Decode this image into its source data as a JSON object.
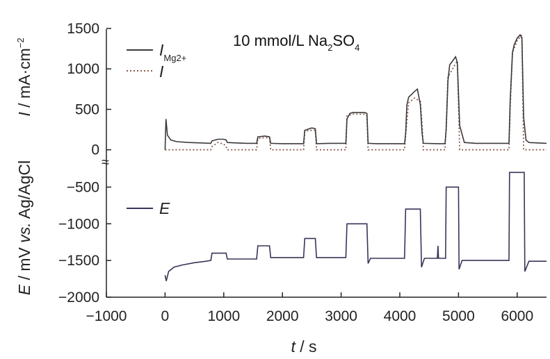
{
  "chart_data": {
    "type": "line",
    "title": "",
    "annotation": {
      "text": "10 mmol/L Na",
      "sub1": "2",
      "mid": "SO",
      "sub2": "4"
    },
    "xlabel": {
      "var": "t",
      "rest": " / s"
    },
    "xlim": [
      -1000,
      6500
    ],
    "x_ticks": [
      "−1000",
      "0",
      "1000",
      "2000",
      "3000",
      "4000",
      "5000",
      "6000"
    ],
    "x_tick_values": [
      -1000,
      0,
      1000,
      2000,
      3000,
      4000,
      5000,
      6000
    ],
    "break_marker": "≈",
    "colors": {
      "imeas": "#3a3a3a",
      "icalc": "#8a5a4a",
      "e": "#3a3357",
      "axis": "#222222"
    },
    "upper": {
      "ylabel": {
        "var": "I",
        "rest": " / mA·cm",
        "sup": "−2"
      },
      "ylim": [
        -80,
        1500
      ],
      "y_ticks": [
        "0",
        "500",
        "1000",
        "1500"
      ],
      "y_tick_values": [
        0,
        500,
        1000,
        1500
      ],
      "series": [
        {
          "name": "I",
          "name_sub": "Mg2+",
          "style": "solid",
          "x": [
            0,
            15,
            40,
            100,
            200,
            400,
            600,
            780,
            800,
            900,
            1000,
            1040,
            1060,
            1200,
            1400,
            1560,
            1580,
            1700,
            1780,
            1800,
            2000,
            2300,
            2360,
            2380,
            2500,
            2560,
            2580,
            2800,
            3080,
            3100,
            3150,
            3200,
            3400,
            3440,
            3460,
            3600,
            4000,
            4080,
            4100,
            4120,
            4150,
            4250,
            4300,
            4350,
            4380,
            4400,
            4650,
            4770,
            4790,
            4820,
            4850,
            4900,
            4950,
            4980,
            5020,
            5100,
            5300,
            5700,
            5860,
            5880,
            5920,
            5950,
            6000,
            6050,
            6080,
            6110,
            6150,
            6200,
            6500
          ],
          "y": [
            0,
            380,
            180,
            120,
            100,
            90,
            85,
            80,
            110,
            130,
            130,
            120,
            90,
            85,
            80,
            80,
            160,
            170,
            160,
            80,
            75,
            75,
            75,
            240,
            270,
            260,
            75,
            80,
            80,
            380,
            450,
            460,
            460,
            450,
            80,
            75,
            75,
            75,
            200,
            550,
            650,
            720,
            750,
            560,
            200,
            80,
            75,
            75,
            250,
            850,
            1050,
            1100,
            1150,
            1080,
            300,
            90,
            80,
            80,
            80,
            600,
            1200,
            1300,
            1380,
            1420,
            1380,
            400,
            120,
            90,
            80
          ]
        },
        {
          "name": "I",
          "style": "dotted",
          "x": [
            0,
            780,
            800,
            900,
            1000,
            1040,
            1060,
            1560,
            1580,
            1700,
            1780,
            1800,
            2360,
            2380,
            2500,
            2560,
            2580,
            3080,
            3100,
            3200,
            3400,
            3440,
            3460,
            4080,
            4100,
            4150,
            4250,
            4350,
            4380,
            4400,
            4770,
            4790,
            4820,
            4900,
            4980,
            5020,
            5860,
            5880,
            5920,
            6000,
            6080,
            6110,
            6500
          ],
          "y": [
            0,
            0,
            40,
            90,
            70,
            40,
            0,
            0,
            140,
            150,
            150,
            0,
            0,
            230,
            240,
            240,
            0,
            0,
            420,
            440,
            440,
            420,
            0,
            0,
            180,
            580,
            640,
            600,
            300,
            0,
            0,
            300,
            900,
            1000,
            1100,
            0,
            0,
            500,
            1200,
            1350,
            1420,
            0,
            0
          ]
        }
      ]
    },
    "lower": {
      "ylabel": {
        "var": "E",
        "rest": " / mV ",
        "vs": "vs.",
        "rest2": " Ag/AgCl"
      },
      "ylim": [
        -2000,
        -250
      ],
      "y_ticks": [
        "−2000",
        "−1500",
        "−1000",
        "−500"
      ],
      "y_tick_values": [
        -2000,
        -1500,
        -1000,
        -500
      ],
      "series": [
        {
          "name": "E",
          "style": "solid",
          "x": [
            0,
            20,
            60,
            150,
            300,
            500,
            700,
            780,
            800,
            1040,
            1060,
            1300,
            1560,
            1580,
            1780,
            1800,
            2050,
            2360,
            2380,
            2560,
            2580,
            2800,
            3080,
            3100,
            3440,
            3460,
            3500,
            3800,
            4080,
            4100,
            4350,
            4370,
            4420,
            4640,
            4650,
            4660,
            4780,
            4790,
            5000,
            5010,
            5060,
            5400,
            5860,
            5870,
            6120,
            6130,
            6200,
            6500
          ],
          "y": [
            -1700,
            -1780,
            -1650,
            -1590,
            -1560,
            -1530,
            -1510,
            -1500,
            -1400,
            -1400,
            -1480,
            -1480,
            -1480,
            -1300,
            -1300,
            -1460,
            -1460,
            -1460,
            -1200,
            -1200,
            -1460,
            -1460,
            -1460,
            -1000,
            -1000,
            -1540,
            -1470,
            -1470,
            -1470,
            -800,
            -800,
            -1590,
            -1470,
            -1470,
            -1300,
            -1470,
            -1470,
            -500,
            -500,
            -1620,
            -1500,
            -1500,
            -1500,
            -300,
            -300,
            -1650,
            -1510,
            -1510
          ]
        }
      ]
    }
  }
}
